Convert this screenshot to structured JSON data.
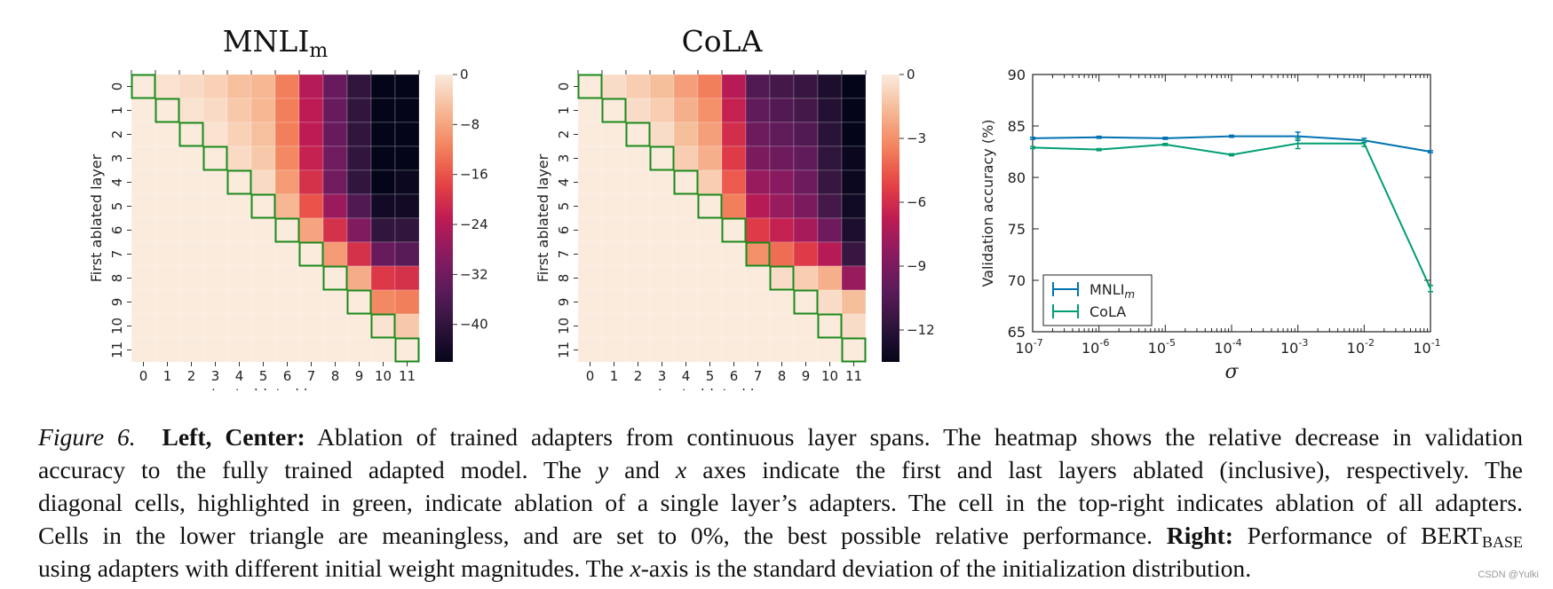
{
  "chart_data": [
    {
      "type": "heatmap",
      "title": "MNLI",
      "title_sub": "m",
      "xlabel": "Last ablated layer",
      "ylabel": "First ablated layer",
      "x_ticks": [
        "0",
        "1",
        "2",
        "3",
        "4",
        "5",
        "6",
        "7",
        "8",
        "9",
        "10",
        "11"
      ],
      "y_ticks": [
        "0",
        "1",
        "2",
        "3",
        "4",
        "5",
        "6",
        "7",
        "8",
        "9",
        "10",
        "11"
      ],
      "colorbar": {
        "min": -46,
        "max": 0,
        "ticks": [
          0,
          -8,
          -16,
          -24,
          -32,
          -40
        ],
        "tick_labels": [
          "0",
          "−8",
          "−16",
          "−24",
          "−32",
          "−40"
        ]
      },
      "highlight": "diagonal",
      "values": [
        [
          0,
          -1,
          -2,
          -3,
          -5,
          -6,
          -12,
          -24,
          -33,
          -40,
          -46,
          -46
        ],
        [
          0,
          0,
          -1,
          -2,
          -4,
          -6,
          -12,
          -23,
          -33,
          -40,
          -46,
          -46
        ],
        [
          0,
          0,
          0,
          -1,
          -3,
          -5,
          -12,
          -23,
          -33,
          -40,
          -46,
          -46
        ],
        [
          0,
          0,
          0,
          0,
          -2,
          -4,
          -11,
          -22,
          -32,
          -40,
          -46,
          -46
        ],
        [
          0,
          0,
          0,
          0,
          0,
          -2,
          -9,
          -20,
          -32,
          -40,
          -46,
          -45
        ],
        [
          0,
          0,
          0,
          0,
          0,
          0,
          -6,
          -16,
          -27,
          -36,
          -44,
          -44
        ],
        [
          0,
          0,
          0,
          0,
          0,
          0,
          0,
          -8,
          -20,
          -30,
          -40,
          -40
        ],
        [
          0,
          0,
          0,
          0,
          0,
          0,
          0,
          0,
          -9,
          -20,
          -33,
          -35
        ],
        [
          0,
          0,
          0,
          0,
          0,
          0,
          0,
          0,
          0,
          -7,
          -19,
          -20
        ],
        [
          0,
          0,
          0,
          0,
          0,
          0,
          0,
          0,
          0,
          0,
          -11,
          -12
        ],
        [
          0,
          0,
          0,
          0,
          0,
          0,
          0,
          0,
          0,
          0,
          -1,
          -4
        ],
        [
          0,
          0,
          0,
          0,
          0,
          0,
          0,
          0,
          0,
          0,
          0,
          0
        ]
      ]
    },
    {
      "type": "heatmap",
      "title": "CoLA",
      "xlabel": "Last ablated layer",
      "ylabel": "First ablated layer",
      "x_ticks": [
        "0",
        "1",
        "2",
        "3",
        "4",
        "5",
        "6",
        "7",
        "8",
        "9",
        "10",
        "11"
      ],
      "y_ticks": [
        "0",
        "1",
        "2",
        "3",
        "4",
        "5",
        "6",
        "7",
        "8",
        "9",
        "10",
        "11"
      ],
      "colorbar": {
        "min": -13.5,
        "max": 0,
        "ticks": [
          0,
          -3,
          -6,
          -9,
          -12
        ],
        "tick_labels": [
          "0",
          "−3",
          "−6",
          "−9",
          "−12"
        ]
      },
      "highlight": "diagonal",
      "values": [
        [
          0,
          -0.5,
          -1,
          -1.5,
          -2.5,
          -3.5,
          -7,
          -10.5,
          -11,
          -11.5,
          -12.5,
          -13.5
        ],
        [
          0,
          0,
          -0.5,
          -1,
          -2,
          -3,
          -6.5,
          -10,
          -10.5,
          -11,
          -12.3,
          -13.5
        ],
        [
          0,
          0,
          0,
          -0.5,
          -1.5,
          -2.5,
          -6,
          -9.5,
          -10,
          -10.5,
          -12,
          -13.5
        ],
        [
          0,
          0,
          0,
          0,
          -1,
          -2,
          -5.5,
          -9,
          -9.5,
          -10,
          -11.8,
          -13.3
        ],
        [
          0,
          0,
          0,
          0,
          0,
          -1,
          -4.5,
          -8,
          -8.5,
          -9.5,
          -11.5,
          -13.2
        ],
        [
          0,
          0,
          0,
          0,
          0,
          0,
          -3.5,
          -7,
          -8,
          -9,
          -11,
          -13
        ],
        [
          0,
          0,
          0,
          0,
          0,
          0,
          0,
          -5.5,
          -6.5,
          -7.5,
          -9.5,
          -12.5
        ],
        [
          0,
          0,
          0,
          0,
          0,
          0,
          0,
          -3,
          -4,
          -5.5,
          -7,
          -11.5
        ],
        [
          0,
          0,
          0,
          0,
          0,
          0,
          0,
          0,
          -0.5,
          -1,
          -2,
          -8
        ],
        [
          0,
          0,
          0,
          0,
          0,
          0,
          0,
          0,
          0,
          0,
          -0.5,
          -1.5
        ],
        [
          0,
          0,
          0,
          0,
          0,
          0,
          0,
          0,
          0,
          0,
          0,
          -0.5
        ],
        [
          0,
          0,
          0,
          0,
          0,
          0,
          0,
          0,
          0,
          0,
          0,
          0
        ]
      ]
    },
    {
      "type": "line",
      "xlabel": "σ",
      "ylabel": "Validation accuracy (%)",
      "xscale": "log",
      "x": [
        1e-07,
        1e-06,
        1e-05,
        0.0001,
        0.001,
        0.01,
        0.1
      ],
      "x_tick_labels": [
        "-7",
        "-6",
        "-5",
        "-4",
        "-3",
        "-2",
        "-1"
      ],
      "x_tick_base": "10",
      "ylim": [
        65,
        90
      ],
      "y_ticks": [
        65,
        70,
        75,
        80,
        85,
        90
      ],
      "legend_position": "lower-left",
      "grid": false,
      "series": [
        {
          "name": "MNLI",
          "name_sub": "m",
          "color": "#0072b2",
          "values": [
            83.8,
            83.9,
            83.8,
            84.0,
            84.0,
            83.6,
            82.5
          ],
          "errors": [
            0.1,
            0.1,
            0.1,
            0.1,
            0.4,
            0.2,
            0.1
          ]
        },
        {
          "name": "CoLA",
          "color": "#009e73",
          "values": [
            82.9,
            82.7,
            83.2,
            82.2,
            83.3,
            83.3,
            69.2
          ],
          "errors": [
            0.1,
            0.1,
            0.1,
            0.1,
            0.5,
            0.3,
            0.3
          ]
        }
      ]
    }
  ],
  "caption": {
    "label": "Figure 6.",
    "part1_bold": "Left, Center:",
    "line1_rest": "Ablation of trained adapters from continuous layer spans. The heatmap shows the relative decrease in validation",
    "line2_a": "accuracy to the fully trained adapted model. The",
    "line2_y": "y",
    "line2_and": "and",
    "line2_x": "x",
    "line2_b": "axes indicate the first and last layers ablated (inclusive), respectively. The",
    "line3": "diagonal cells, highlighted in green, indicate ablation of a single layer’s adapters. The cell in the top-right indicates ablation of all adapters.",
    "line4_a": "Cells in the lower triangle are meaningless, and are set to 0%, the best possible relative performance.",
    "part2_bold": "Right:",
    "line4_b": "Performance of BERT",
    "line4_sub": "BASE",
    "line5_a": "using adapters with different initial weight magnitudes. The",
    "line5_x": "x",
    "line5_b": "-axis is the standard deviation of the initialization distribution."
  },
  "watermark": "CSDN @Yulki"
}
